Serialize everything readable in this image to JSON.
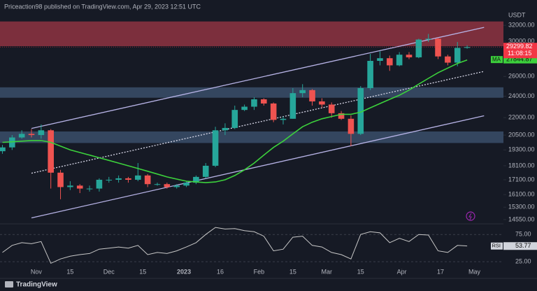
{
  "header": {
    "publisher": "Priceaction98 published on TradingView.com, Apr 29, 2023 12:51 UTC",
    "logo": "TradingView"
  },
  "chart_data": [
    {
      "type": "candlestick",
      "quote": "USDT",
      "log_scale": true,
      "grid": false,
      "up_color": "#26a69a",
      "down_color": "#ef5350",
      "x": [
        "2022-10-18",
        "2022-10-22",
        "2022-10-26",
        "2022-10-30",
        "2022-11-03",
        "2022-11-07",
        "2022-11-11",
        "2022-11-15",
        "2022-11-19",
        "2022-11-23",
        "2022-11-27",
        "2022-12-01",
        "2022-12-05",
        "2022-12-09",
        "2022-12-13",
        "2022-12-17",
        "2022-12-21",
        "2022-12-25",
        "2022-12-29",
        "2023-01-02",
        "2023-01-06",
        "2023-01-10",
        "2023-01-14",
        "2023-01-18",
        "2023-01-22",
        "2023-01-26",
        "2023-01-30",
        "2023-02-03",
        "2023-02-07",
        "2023-02-11",
        "2023-02-15",
        "2023-02-19",
        "2023-02-23",
        "2023-02-27",
        "2023-03-03",
        "2023-03-07",
        "2023-03-11",
        "2023-03-15",
        "2023-03-19",
        "2023-03-23",
        "2023-03-27",
        "2023-03-31",
        "2023-04-04",
        "2023-04-08",
        "2023-04-12",
        "2023-04-16",
        "2023-04-20",
        "2023-04-24",
        "2023-04-28"
      ],
      "open": [
        19200,
        19500,
        20300,
        20600,
        20500,
        20900,
        17600,
        16600,
        16700,
        16500,
        16500,
        17100,
        17100,
        17200,
        17100,
        17400,
        16800,
        16800,
        16600,
        16700,
        16900,
        17300,
        18100,
        20900,
        21100,
        22700,
        23000,
        23700,
        23300,
        21800,
        21900,
        24300,
        24600,
        23500,
        23200,
        22400,
        21900,
        20600,
        24800,
        27700,
        28000,
        27200,
        28400,
        28100,
        30200,
        30300,
        28200,
        27500,
        29200
      ],
      "high": [
        19700,
        20500,
        20900,
        21000,
        21400,
        21000,
        17800,
        17000,
        16800,
        16700,
        17200,
        17300,
        17400,
        17300,
        18300,
        17500,
        16900,
        16900,
        16800,
        17000,
        17400,
        18300,
        21200,
        21500,
        23100,
        23200,
        23900,
        23800,
        23400,
        22100,
        24800,
        25200,
        24700,
        23800,
        23400,
        22600,
        22200,
        25000,
        28500,
        28800,
        28300,
        28700,
        28700,
        30300,
        30900,
        30400,
        28400,
        29900,
        29500
      ],
      "low": [
        19000,
        19300,
        20200,
        20300,
        20200,
        16500,
        15800,
        16400,
        16200,
        16300,
        16300,
        16900,
        16900,
        16900,
        17000,
        16600,
        16700,
        16500,
        16500,
        16600,
        16800,
        17200,
        18000,
        20500,
        21000,
        22600,
        22700,
        23100,
        21600,
        21400,
        21900,
        23900,
        23100,
        22900,
        22000,
        21800,
        19600,
        20500,
        24600,
        27200,
        26600,
        27100,
        27900,
        28000,
        29900,
        27900,
        27200,
        27100,
        29100
      ],
      "close": [
        19500,
        20300,
        20600,
        20500,
        20900,
        17600,
        16600,
        16700,
        16500,
        16500,
        17100,
        17100,
        17200,
        17100,
        17400,
        16800,
        16800,
        16600,
        16700,
        16900,
        17300,
        18100,
        20900,
        21100,
        22700,
        23000,
        23700,
        23300,
        21800,
        21900,
        24300,
        24600,
        23500,
        23200,
        22400,
        21900,
        20600,
        24800,
        27700,
        28000,
        27200,
        28400,
        28100,
        30200,
        30300,
        28200,
        27500,
        29200,
        29300
      ],
      "xlim": [
        "2022-10-17",
        "2023-05-13"
      ],
      "xticks": [
        {
          "value": "2022-11-01",
          "label": "Nov"
        },
        {
          "value": "2022-11-15",
          "label": "15"
        },
        {
          "value": "2022-12-01",
          "label": "Dec"
        },
        {
          "value": "2022-12-15",
          "label": "15"
        },
        {
          "value": "2023-01-01",
          "label": "2023"
        },
        {
          "value": "2023-01-16",
          "label": "16"
        },
        {
          "value": "2023-02-01",
          "label": "Feb"
        },
        {
          "value": "2023-02-15",
          "label": "15"
        },
        {
          "value": "2023-03-01",
          "label": "Mar"
        },
        {
          "value": "2023-03-15",
          "label": "15"
        },
        {
          "value": "2023-04-01",
          "label": "Apr"
        },
        {
          "value": "2023-04-17",
          "label": "17"
        },
        {
          "value": "2023-05-01",
          "label": "May"
        }
      ],
      "ylim": [
        14300,
        33500
      ],
      "yticks": [
        {
          "value": 32000,
          "label": "32000.00"
        },
        {
          "value": 30000,
          "label": "30000.00"
        },
        {
          "value": 26000,
          "label": "26000.00"
        },
        {
          "value": 24000,
          "label": "24000.00"
        },
        {
          "value": 22000,
          "label": "22000.00"
        },
        {
          "value": 20500,
          "label": "20500.00"
        },
        {
          "value": 19300,
          "label": "19300.00"
        },
        {
          "value": 18100,
          "label": "18100.00"
        },
        {
          "value": 17100,
          "label": "17100.00"
        },
        {
          "value": 16100,
          "label": "16100.00"
        },
        {
          "value": 15300,
          "label": "15300.00"
        },
        {
          "value": 14550,
          "label": "14550.00"
        }
      ],
      "last_price": {
        "value": 29299.82,
        "countdown": "11:08:15",
        "color": "#f23645"
      },
      "overlays": [
        {
          "type": "line",
          "name": "MA",
          "color": "#3cd13c",
          "values": [
            19900,
            19950,
            20000,
            20050,
            20050,
            19900,
            19600,
            19300,
            19100,
            18900,
            18700,
            18500,
            18300,
            18100,
            17900,
            17700,
            17500,
            17300,
            17150,
            17000,
            16950,
            16900,
            16950,
            17100,
            17400,
            17800,
            18300,
            18900,
            19500,
            20000,
            20600,
            21200,
            21600,
            21900,
            22100,
            22300,
            22300,
            22500,
            22900,
            23300,
            23700,
            24100,
            24600,
            25200,
            25800,
            26400,
            26900,
            27400,
            27800
          ],
          "last_value": 27844.87
        }
      ],
      "zones": [
        {
          "low": 29400,
          "high": 32500,
          "color": "#7c2f3d"
        },
        {
          "low": 23850,
          "high": 24880,
          "color": "#34465f"
        },
        {
          "low": 19850,
          "high": 20800,
          "color": "#34465f"
        }
      ],
      "trendlines": [
        {
          "x": [
            "2022-10-30",
            "2023-05-05"
          ],
          "y": [
            21060,
            31730
          ],
          "color": "#b7b3e6",
          "dashed": false
        },
        {
          "x": [
            "2022-10-30",
            "2023-05-05"
          ],
          "y": [
            17560,
            26540
          ],
          "color": "#d8d8e8",
          "dashed": true
        },
        {
          "x": [
            "2022-10-30",
            "2023-05-05"
          ],
          "y": [
            14650,
            22170
          ],
          "color": "#b7b3e6",
          "dashed": false
        }
      ]
    },
    {
      "type": "line",
      "name": "RSI",
      "color": "#c8c8c8",
      "values": [
        42,
        55,
        60,
        58,
        62,
        22,
        30,
        35,
        38,
        40,
        48,
        50,
        52,
        50,
        55,
        38,
        42,
        40,
        45,
        52,
        60,
        75,
        88,
        85,
        86,
        82,
        80,
        72,
        45,
        48,
        70,
        72,
        55,
        52,
        42,
        38,
        30,
        75,
        80,
        78,
        60,
        68,
        62,
        75,
        74,
        45,
        42,
        55,
        54
      ],
      "last_value": 53.77,
      "ylim": [
        11,
        92
      ],
      "yticks": [
        {
          "value": 75,
          "label": "75.00"
        },
        {
          "value": 25,
          "label": "25.00"
        }
      ]
    }
  ]
}
